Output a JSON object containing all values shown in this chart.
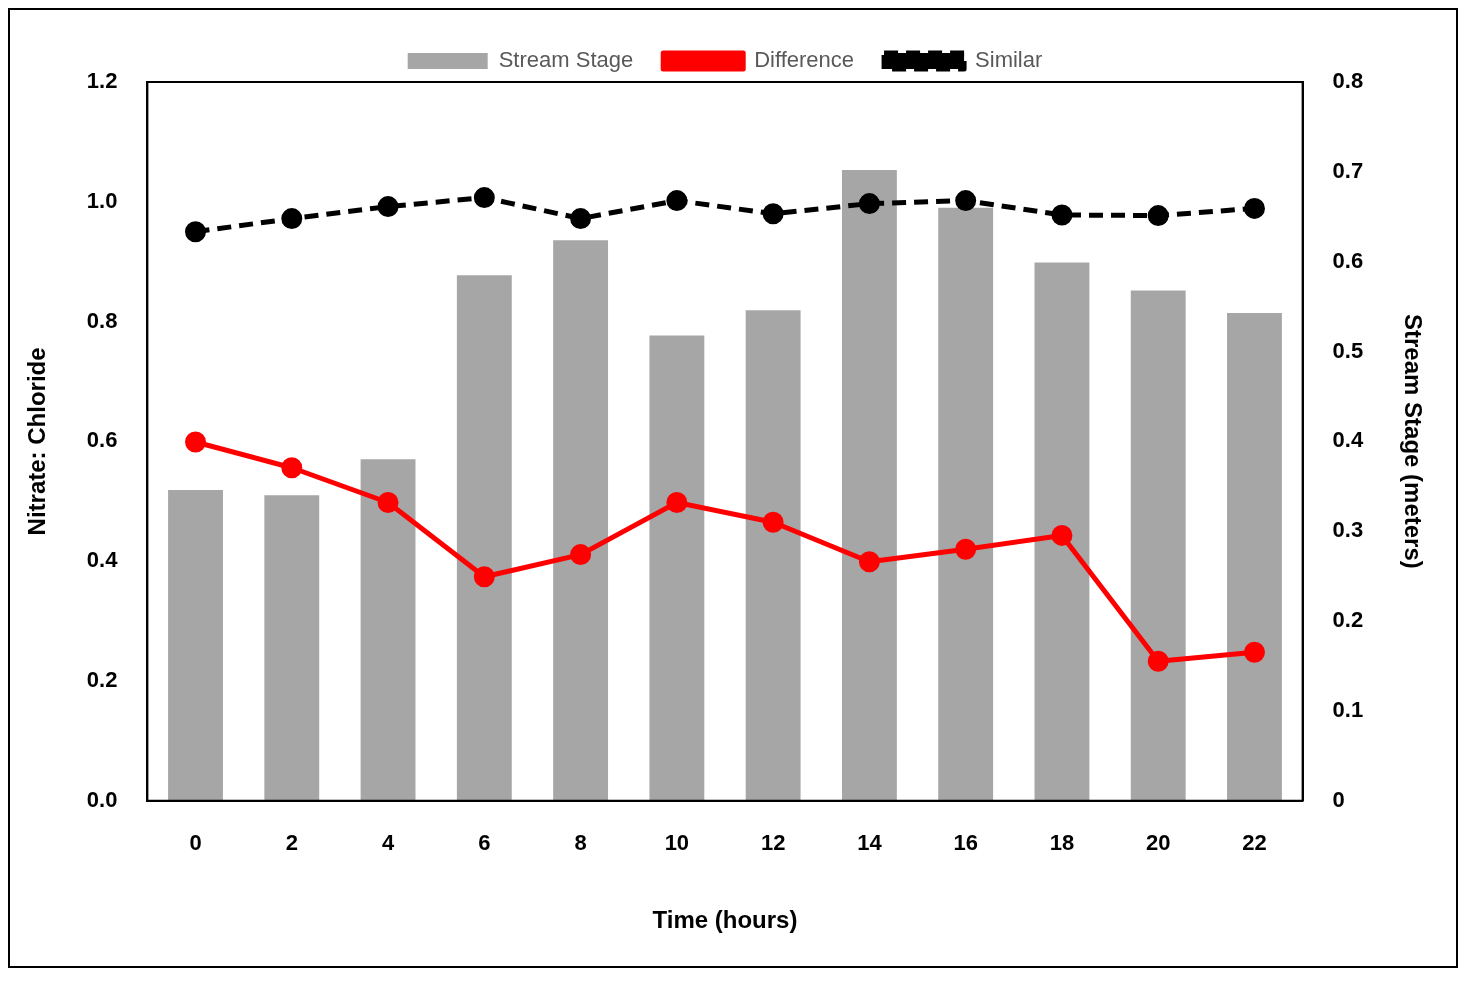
{
  "chart_data": {
    "type": "bar",
    "xlabel": "Time (hours)",
    "ylabel": "Nitrate: Chloride",
    "y2label": "Stream Stage (meters)",
    "categories": [
      "0",
      "2",
      "4",
      "6",
      "8",
      "10",
      "12",
      "14",
      "16",
      "18",
      "20",
      "22"
    ],
    "series": [
      {
        "name": "Stream Stage",
        "axis": "y2",
        "color": "#a6a6a6",
        "values": [
          0.346,
          0.34,
          0.38,
          0.585,
          0.624,
          0.518,
          0.546,
          0.702,
          0.66,
          0.599,
          0.568,
          0.543
        ]
      },
      {
        "name": "Difference",
        "type": "line",
        "color": "#ff0000",
        "marker": "circle",
        "line_style": "solid",
        "values": [
          0.599,
          0.556,
          0.498,
          0.374,
          0.411,
          0.498,
          0.465,
          0.399,
          0.42,
          0.443,
          0.233,
          0.248
        ]
      },
      {
        "name": "Similar",
        "type": "line",
        "color": "#000000",
        "marker": "circle",
        "line_style": "dashed",
        "values": [
          0.95,
          0.972,
          0.992,
          1.007,
          0.972,
          1.002,
          0.98,
          0.997,
          1.002,
          0.978,
          0.977,
          0.989
        ]
      }
    ],
    "ylim": [
      0,
      1.2
    ],
    "yticks": [
      {
        "value": 0,
        "label": "0.0"
      },
      {
        "value": 0.2,
        "label": "0.2"
      },
      {
        "value": 0.4,
        "label": "0.4"
      },
      {
        "value": 0.6,
        "label": "0.6"
      },
      {
        "value": 0.8,
        "label": "0.8"
      },
      {
        "value": 1,
        "label": "1.0"
      },
      {
        "value": 1.2,
        "label": "1.2"
      }
    ],
    "y2lim": [
      0,
      0.8
    ],
    "y2ticks": [
      0,
      0.1,
      0.2,
      0.3,
      0.4,
      0.5,
      0.6,
      0.7,
      0.8
    ],
    "legend": "top",
    "grid": false
  }
}
